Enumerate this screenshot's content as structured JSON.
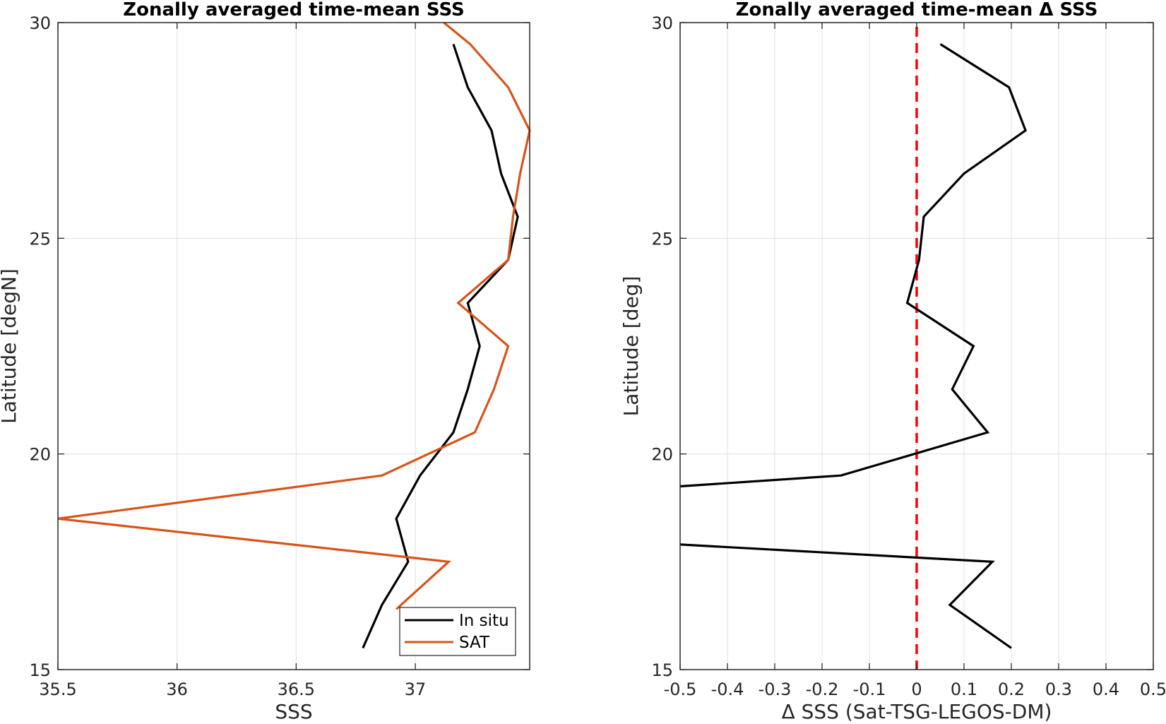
{
  "chart_data": [
    {
      "type": "line",
      "title": "Zonally averaged time-mean SSS",
      "xlabel": "SSS",
      "ylabel": "Latitude [degN]",
      "xlim": [
        35.5,
        37.48
      ],
      "ylim": [
        15,
        30
      ],
      "xticks": [
        35.5,
        36,
        36.5,
        37
      ],
      "xtick_labels": [
        "35.5",
        "36",
        "36.5",
        "37"
      ],
      "yticks": [
        15,
        20,
        25,
        30
      ],
      "ytick_labels": [
        "15",
        "20",
        "25",
        "30"
      ],
      "grid": true,
      "legend_position": "bottom-right",
      "series": [
        {
          "name": "In situ",
          "color": "#000000",
          "points": [
            [
              36.78,
              15.5
            ],
            [
              36.86,
              16.5
            ],
            [
              36.97,
              17.5
            ],
            [
              36.92,
              18.5
            ],
            [
              37.02,
              19.5
            ],
            [
              37.16,
              20.5
            ],
            [
              37.22,
              21.5
            ],
            [
              37.27,
              22.5
            ],
            [
              37.22,
              23.5
            ],
            [
              37.39,
              24.5
            ],
            [
              37.43,
              25.5
            ],
            [
              37.36,
              26.5
            ],
            [
              37.32,
              27.5
            ],
            [
              37.22,
              28.5
            ],
            [
              37.16,
              29.5
            ]
          ]
        },
        {
          "name": "SAT",
          "color": "#D95319",
          "points": [
            [
              36.92,
              16.4
            ],
            [
              37.14,
              17.5
            ],
            [
              35.5,
              18.5
            ],
            [
              36.86,
              19.5
            ],
            [
              37.25,
              20.5
            ],
            [
              37.33,
              21.5
            ],
            [
              37.39,
              22.5
            ],
            [
              37.18,
              23.5
            ],
            [
              37.39,
              24.5
            ],
            [
              37.41,
              25.5
            ],
            [
              37.44,
              26.5
            ],
            [
              37.48,
              27.5
            ],
            [
              37.39,
              28.5
            ],
            [
              37.23,
              29.5
            ],
            [
              37.12,
              30.0
            ]
          ]
        }
      ]
    },
    {
      "type": "line",
      "title": "Zonally averaged time-mean Δ SSS",
      "xlabel": "Δ SSS (Sat-TSG-LEGOS-DM)",
      "ylabel": "Latitude [deg]",
      "xlim": [
        -0.5,
        0.5
      ],
      "ylim": [
        15,
        30
      ],
      "xticks": [
        -0.5,
        -0.4,
        -0.3,
        -0.2,
        -0.1,
        0,
        0.1,
        0.2,
        0.3,
        0.4,
        0.5
      ],
      "xtick_labels": [
        "-0.5",
        "-0.4",
        "-0.3",
        "-0.2",
        "-0.1",
        "0",
        "0.1",
        "0.2",
        "0.3",
        "0.4",
        "0.5"
      ],
      "yticks": [
        15,
        20,
        25,
        30
      ],
      "ytick_labels": [
        "15",
        "20",
        "25",
        "30"
      ],
      "grid": true,
      "reference_line": {
        "x": 0,
        "color": "#FF0000",
        "style": "dashed"
      },
      "series": [
        {
          "color": "#000000",
          "points": [
            [
              0.2,
              15.5
            ],
            [
              0.07,
              16.5
            ],
            [
              0.16,
              17.5
            ],
            [
              -0.5,
              17.9
            ]
          ]
        },
        {
          "color": "#000000",
          "points": [
            [
              -0.5,
              19.25
            ],
            [
              -0.16,
              19.5
            ],
            [
              0.15,
              20.5
            ],
            [
              0.075,
              21.5
            ],
            [
              0.12,
              22.5
            ],
            [
              -0.02,
              23.5
            ],
            [
              0.005,
              24.5
            ],
            [
              0.015,
              25.5
            ],
            [
              0.1,
              26.5
            ],
            [
              0.23,
              27.5
            ],
            [
              0.195,
              28.5
            ],
            [
              0.05,
              29.5
            ]
          ]
        }
      ]
    }
  ]
}
